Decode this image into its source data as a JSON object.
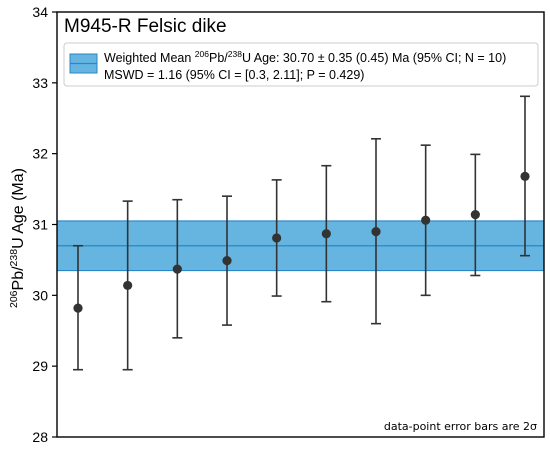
{
  "chart_data": {
    "type": "scatter",
    "title": "M945-R Felsic dike",
    "ylabel": {
      "pre": "206",
      "a": "Pb/",
      "sup2": "238",
      "b": "U Age (Ma)"
    },
    "xlabel": "",
    "ylim": [
      28,
      34
    ],
    "yticks": [
      28,
      29,
      30,
      31,
      32,
      33,
      34
    ],
    "ytick_labels": [
      "28",
      "29",
      "30",
      "31",
      "32",
      "33",
      "34"
    ],
    "grid": false,
    "legend_position": "top",
    "weighted_mean": {
      "value": 30.7,
      "band": [
        30.35,
        31.05
      ],
      "color": "#65b5e0",
      "edge_color": "#2a86c6"
    },
    "legend": {
      "line1": {
        "t1": "Weighted Mean ",
        "s1": "206",
        "t2": "Pb/",
        "s2": "238",
        "t3": "U Age: 30.70 ± 0.35 (0.45) Ma (95% CI; N = 10)"
      },
      "line2": "MSWD = 1.16 (95% CI = [0.3, 2.11]; P = 0.429)"
    },
    "annotation": "data-point error bars are 2σ",
    "series": [
      {
        "marker_color": "#333333",
        "points": [
          {
            "x": 1,
            "y": 29.82,
            "lo": 28.95,
            "hi": 30.7
          },
          {
            "x": 2,
            "y": 30.14,
            "lo": 28.95,
            "hi": 31.33
          },
          {
            "x": 3,
            "y": 30.37,
            "lo": 29.4,
            "hi": 31.35
          },
          {
            "x": 4,
            "y": 30.49,
            "lo": 29.58,
            "hi": 31.4
          },
          {
            "x": 5,
            "y": 30.81,
            "lo": 29.99,
            "hi": 31.63
          },
          {
            "x": 6,
            "y": 30.87,
            "lo": 29.91,
            "hi": 31.83
          },
          {
            "x": 7,
            "y": 30.9,
            "lo": 29.6,
            "hi": 32.21
          },
          {
            "x": 8,
            "y": 31.06,
            "lo": 30.0,
            "hi": 32.12
          },
          {
            "x": 9,
            "y": 31.14,
            "lo": 30.28,
            "hi": 31.99
          },
          {
            "x": 10,
            "y": 31.68,
            "lo": 30.56,
            "hi": 32.81
          }
        ]
      }
    ]
  }
}
